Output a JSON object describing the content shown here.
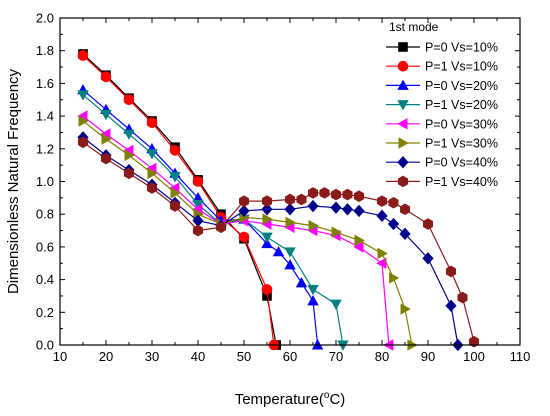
{
  "chart_data": {
    "type": "line",
    "xlabel": "Temperature(°C)",
    "ylabel": "Dimensionless Natural Frequency",
    "xlim": [
      10,
      110
    ],
    "ylim": [
      0.0,
      2.0
    ],
    "xticks": [
      10,
      20,
      30,
      40,
      50,
      60,
      70,
      80,
      90,
      100,
      110
    ],
    "yticks": [
      0.0,
      0.2,
      0.4,
      0.6,
      0.8,
      1.0,
      1.2,
      1.4,
      1.6,
      1.8,
      2.0
    ],
    "grid": false,
    "legend_title": "1st mode",
    "legend_position": "top-right",
    "series": [
      {
        "name": "P=0 Vs=10%",
        "color": "#000000",
        "marker": "square",
        "points": [
          [
            15,
            1.78
          ],
          [
            20,
            1.65
          ],
          [
            25,
            1.51
          ],
          [
            30,
            1.37
          ],
          [
            35,
            1.21
          ],
          [
            40,
            1.01
          ],
          [
            45,
            0.8
          ],
          [
            50,
            0.65
          ],
          [
            55,
            0.3
          ],
          [
            57,
            0.0
          ]
        ]
      },
      {
        "name": "P=1 Vs=10%",
        "color": "#ff0000",
        "marker": "circle",
        "points": [
          [
            15,
            1.77
          ],
          [
            20,
            1.64
          ],
          [
            25,
            1.5
          ],
          [
            30,
            1.36
          ],
          [
            35,
            1.19
          ],
          [
            40,
            1.0
          ],
          [
            45,
            0.78
          ],
          [
            50,
            0.66
          ],
          [
            55,
            0.34
          ],
          [
            56.5,
            0.0
          ]
        ]
      },
      {
        "name": "P=0 Vs=20%",
        "color": "#0000ff",
        "marker": "triangle-up",
        "points": [
          [
            15,
            1.56
          ],
          [
            20,
            1.44
          ],
          [
            25,
            1.32
          ],
          [
            30,
            1.2
          ],
          [
            35,
            1.05
          ],
          [
            40,
            0.9
          ],
          [
            45,
            0.76
          ],
          [
            50,
            0.77
          ],
          [
            55,
            0.62
          ],
          [
            57.5,
            0.57
          ],
          [
            60,
            0.49
          ],
          [
            62.5,
            0.38
          ],
          [
            65,
            0.27
          ],
          [
            66,
            0.0
          ]
        ]
      },
      {
        "name": "P=1 Vs=20%",
        "color": "#008080",
        "marker": "triangle-down",
        "points": [
          [
            15,
            1.53
          ],
          [
            20,
            1.41
          ],
          [
            25,
            1.29
          ],
          [
            30,
            1.17
          ],
          [
            35,
            1.03
          ],
          [
            40,
            0.86
          ],
          [
            45,
            0.74
          ],
          [
            50,
            0.77
          ],
          [
            55,
            0.66
          ],
          [
            60,
            0.57
          ],
          [
            65,
            0.34
          ],
          [
            70,
            0.25
          ],
          [
            71.5,
            0.0
          ]
        ]
      },
      {
        "name": "P=0 Vs=30%",
        "color": "#ff00ff",
        "marker": "triangle-left",
        "points": [
          [
            15,
            1.4
          ],
          [
            20,
            1.29
          ],
          [
            25,
            1.19
          ],
          [
            30,
            1.08
          ],
          [
            35,
            0.96
          ],
          [
            40,
            0.83
          ],
          [
            45,
            0.74
          ],
          [
            50,
            0.76
          ],
          [
            55,
            0.74
          ],
          [
            60,
            0.72
          ],
          [
            65,
            0.7
          ],
          [
            70,
            0.67
          ],
          [
            75,
            0.6
          ],
          [
            80,
            0.5
          ],
          [
            81.5,
            0.0
          ]
        ]
      },
      {
        "name": "P=1 Vs=30%",
        "color": "#808000",
        "marker": "triangle-right",
        "points": [
          [
            15,
            1.37
          ],
          [
            20,
            1.26
          ],
          [
            25,
            1.16
          ],
          [
            30,
            1.05
          ],
          [
            35,
            0.93
          ],
          [
            40,
            0.8
          ],
          [
            45,
            0.74
          ],
          [
            50,
            0.78
          ],
          [
            55,
            0.77
          ],
          [
            60,
            0.75
          ],
          [
            65,
            0.73
          ],
          [
            70,
            0.69
          ],
          [
            75,
            0.64
          ],
          [
            80,
            0.56
          ],
          [
            82.5,
            0.41
          ],
          [
            85,
            0.22
          ],
          [
            86.5,
            0.0
          ]
        ]
      },
      {
        "name": "P=0 Vs=40%",
        "color": "#00008b",
        "marker": "diamond",
        "points": [
          [
            15,
            1.27
          ],
          [
            20,
            1.16
          ],
          [
            25,
            1.07
          ],
          [
            30,
            0.98
          ],
          [
            35,
            0.87
          ],
          [
            40,
            0.76
          ],
          [
            45,
            0.73
          ],
          [
            50,
            0.82
          ],
          [
            55,
            0.83
          ],
          [
            60,
            0.83
          ],
          [
            65,
            0.85
          ],
          [
            70,
            0.84
          ],
          [
            72.5,
            0.83
          ],
          [
            75,
            0.82
          ],
          [
            80,
            0.79
          ],
          [
            82.5,
            0.74
          ],
          [
            85,
            0.68
          ],
          [
            90,
            0.53
          ],
          [
            95,
            0.24
          ],
          [
            96.5,
            0.0
          ]
        ]
      },
      {
        "name": "P=1 Vs=40%",
        "color": "#8b1a1a",
        "marker": "hexagon",
        "points": [
          [
            15,
            1.24
          ],
          [
            20,
            1.14
          ],
          [
            25,
            1.05
          ],
          [
            30,
            0.96
          ],
          [
            35,
            0.85
          ],
          [
            40,
            0.7
          ],
          [
            45,
            0.72
          ],
          [
            50,
            0.88
          ],
          [
            55,
            0.88
          ],
          [
            60,
            0.89
          ],
          [
            62.5,
            0.89
          ],
          [
            65,
            0.93
          ],
          [
            67.5,
            0.93
          ],
          [
            70,
            0.92
          ],
          [
            72.5,
            0.92
          ],
          [
            75,
            0.91
          ],
          [
            80,
            0.88
          ],
          [
            82.5,
            0.87
          ],
          [
            85,
            0.83
          ],
          [
            90,
            0.74
          ],
          [
            95,
            0.45
          ],
          [
            97.5,
            0.29
          ],
          [
            100,
            0.02
          ]
        ]
      }
    ]
  }
}
